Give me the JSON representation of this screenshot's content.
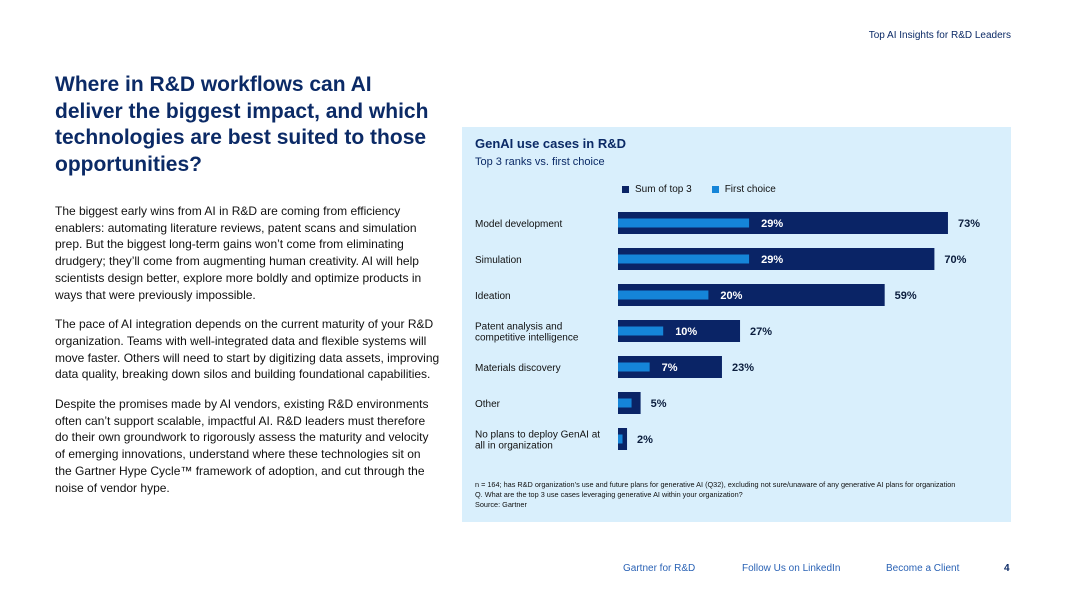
{
  "header": {
    "title": "Top AI Insights for R&D Leaders"
  },
  "headline": "Where in R&D workflows can AI deliver the biggest impact, and which technologies are best suited to those opportunities?",
  "body": [
    "The biggest early wins from AI in R&D are coming from efficiency enablers: automating literature reviews, patent scans and simulation prep. But the biggest long-term gains won’t come from eliminating drudgery; they’ll come from augmenting human creativity. AI will help scientists design better, explore more boldly and optimize products in ways that were previously impossible.",
    "The pace of AI integration depends on the current maturity of your R&D organization. Teams with well-integrated data and flexible systems will move faster. Others will need to start by digitizing data assets, improving data quality, breaking down silos and building foundational capabilities.",
    "Despite the promises made by AI vendors, existing R&D environments often can’t support scalable, impactful AI. R&D leaders must therefore do their own groundwork to rigorously assess the maturity and velocity of emerging innovations, understand where these technologies sit on the Gartner Hype Cycle™ framework of adoption, and cut through the noise of vendor hype."
  ],
  "chart_data": {
    "type": "bar",
    "orientation": "horizontal",
    "title": "GenAI use cases in R&D",
    "subtitle": "Top 3 ranks vs. first choice",
    "categories": [
      "Model development",
      "Simulation",
      "Ideation",
      "Patent analysis and competitive intelligence",
      "Materials discovery",
      "Other",
      "No plans to deploy GenAI at all in organization"
    ],
    "series": [
      {
        "name": "Sum of top 3",
        "color": "#0a2466",
        "values": [
          73,
          70,
          59,
          27,
          23,
          5,
          2
        ],
        "labels": [
          "73%",
          "70%",
          "59%",
          "27%",
          "23%",
          "5%",
          "2%"
        ]
      },
      {
        "name": "First choice",
        "color": "#1585d8",
        "values": [
          29,
          29,
          20,
          10,
          7,
          3,
          1
        ],
        "labels": [
          "29%",
          "29%",
          "20%",
          "10%",
          "7%",
          "",
          ""
        ]
      }
    ],
    "xlim": [
      0,
      100
    ],
    "legend": "top",
    "grid": false,
    "footnote": [
      "n = 164; has R&D organization’s use and future plans for generative AI (Q32), excluding not sure/unaware of any generative AI plans for organization",
      "Q. What are the top 3 use cases leveraging generative AI within your organization?",
      "Source: Gartner"
    ]
  },
  "footer": {
    "links": [
      "Gartner for R&D",
      "Follow Us on LinkedIn",
      "Become a Client"
    ],
    "page": "4"
  }
}
